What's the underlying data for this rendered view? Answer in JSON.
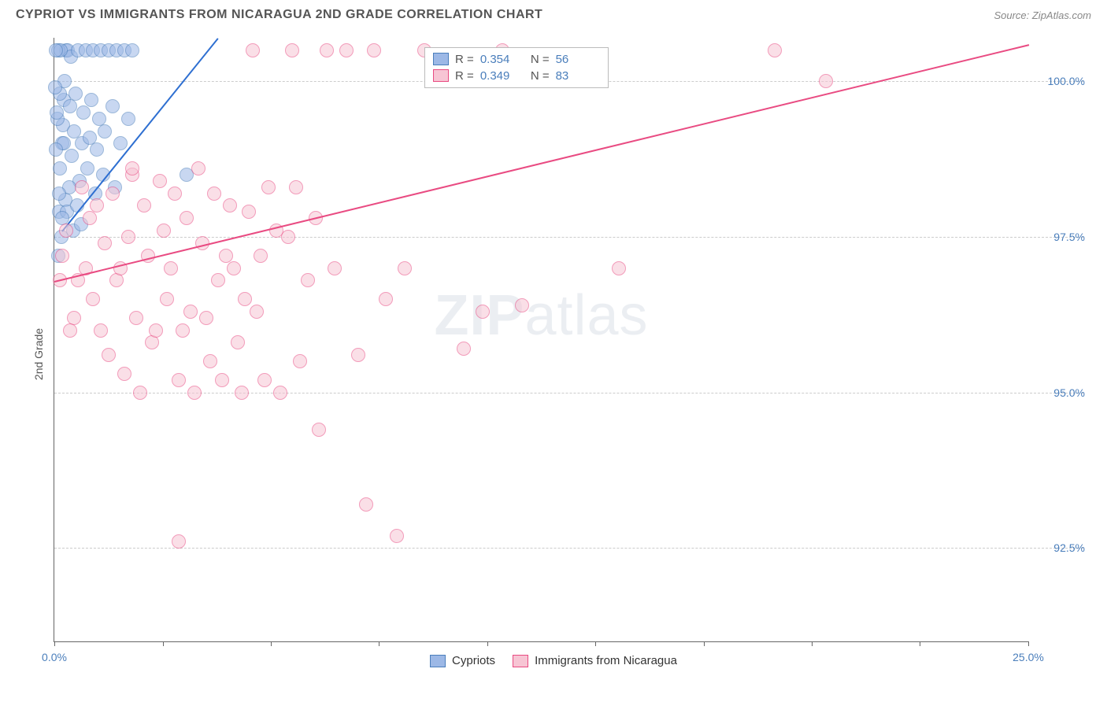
{
  "header": {
    "title": "CYPRIOT VS IMMIGRANTS FROM NICARAGUA 2ND GRADE CORRELATION CHART",
    "source": "Source: ZipAtlas.com"
  },
  "watermark": {
    "zip": "ZIP",
    "atlas": "atlas"
  },
  "chart": {
    "type": "scatter",
    "ylabel": "2nd Grade",
    "background_color": "#ffffff",
    "grid_color": "#cccccc",
    "axis_color": "#666666",
    "tick_label_color": "#4a7ebb",
    "xlim": [
      0,
      25
    ],
    "ylim": [
      91,
      100.7
    ],
    "xticks": [
      0,
      2.78,
      5.56,
      8.33,
      11.11,
      13.89,
      16.67,
      19.44,
      22.22,
      25
    ],
    "xtick_labels": {
      "0": "0.0%",
      "25": "25.0%"
    },
    "yticks": [
      92.5,
      95.0,
      97.5,
      100.0
    ],
    "ytick_labels": {
      "92.5": "92.5%",
      "95.0": "95.0%",
      "97.5": "97.5%",
      "100.0": "100.0%"
    },
    "marker_radius": 9,
    "marker_opacity": 0.55,
    "series": [
      {
        "key": "cypriots",
        "label": "Cypriots",
        "fill": "#9cb8e6",
        "stroke": "#4a7ebb",
        "line_color": "#2e6fd1",
        "R": "0.354",
        "N": "56",
        "trend": {
          "x1": 0.2,
          "y1": 97.6,
          "x2": 4.2,
          "y2": 100.7
        },
        "points": [
          [
            0.15,
            98.6
          ],
          [
            0.2,
            99.0
          ],
          [
            0.22,
            99.3
          ],
          [
            0.25,
            99.7
          ],
          [
            0.3,
            100.5
          ],
          [
            0.35,
            100.5
          ],
          [
            0.4,
            99.6
          ],
          [
            0.42,
            100.4
          ],
          [
            0.45,
            98.8
          ],
          [
            0.5,
            99.2
          ],
          [
            0.55,
            99.8
          ],
          [
            0.6,
            100.5
          ],
          [
            0.65,
            98.4
          ],
          [
            0.7,
            99.0
          ],
          [
            0.75,
            99.5
          ],
          [
            0.8,
            100.5
          ],
          [
            0.85,
            98.6
          ],
          [
            0.9,
            99.1
          ],
          [
            0.95,
            99.7
          ],
          [
            1.0,
            100.5
          ],
          [
            1.05,
            98.2
          ],
          [
            1.1,
            98.9
          ],
          [
            1.15,
            99.4
          ],
          [
            1.2,
            100.5
          ],
          [
            1.25,
            98.5
          ],
          [
            1.3,
            99.2
          ],
          [
            1.4,
            100.5
          ],
          [
            1.5,
            99.6
          ],
          [
            1.55,
            98.3
          ],
          [
            1.6,
            100.5
          ],
          [
            1.7,
            99.0
          ],
          [
            1.8,
            100.5
          ],
          [
            1.9,
            99.4
          ],
          [
            2.0,
            100.5
          ],
          [
            0.12,
            97.9
          ],
          [
            0.18,
            97.5
          ],
          [
            0.28,
            98.1
          ],
          [
            0.32,
            97.9
          ],
          [
            0.38,
            98.3
          ],
          [
            0.48,
            97.6
          ],
          [
            0.58,
            98.0
          ],
          [
            0.68,
            97.7
          ],
          [
            0.08,
            99.4
          ],
          [
            0.1,
            100.5
          ],
          [
            0.12,
            98.2
          ],
          [
            0.14,
            99.8
          ],
          [
            0.16,
            100.5
          ],
          [
            0.2,
            97.8
          ],
          [
            0.24,
            99.0
          ],
          [
            0.26,
            100.0
          ],
          [
            3.4,
            98.5
          ],
          [
            0.1,
            97.2
          ],
          [
            0.05,
            98.9
          ],
          [
            0.07,
            99.5
          ],
          [
            0.03,
            99.9
          ],
          [
            0.04,
            100.5
          ]
        ]
      },
      {
        "key": "nicaragua",
        "label": "Immigants from Nicaragua",
        "display_label": "Immigrants from Nicaragua",
        "fill": "#f7c5d4",
        "stroke": "#e94b82",
        "line_color": "#e94b82",
        "R": "0.349",
        "N": "83",
        "trend": {
          "x1": 0,
          "y1": 96.8,
          "x2": 25,
          "y2": 100.6
        },
        "points": [
          [
            0.2,
            97.2
          ],
          [
            0.3,
            97.6
          ],
          [
            0.5,
            96.2
          ],
          [
            0.7,
            98.3
          ],
          [
            0.8,
            97.0
          ],
          [
            0.9,
            97.8
          ],
          [
            1.0,
            96.5
          ],
          [
            1.1,
            98.0
          ],
          [
            1.2,
            96.0
          ],
          [
            1.3,
            97.4
          ],
          [
            1.5,
            98.2
          ],
          [
            1.6,
            96.8
          ],
          [
            1.8,
            95.3
          ],
          [
            1.9,
            97.5
          ],
          [
            2.0,
            98.5
          ],
          [
            2.1,
            96.2
          ],
          [
            2.3,
            98.0
          ],
          [
            2.4,
            97.2
          ],
          [
            2.5,
            95.8
          ],
          [
            2.7,
            98.4
          ],
          [
            2.8,
            97.6
          ],
          [
            2.9,
            96.5
          ],
          [
            3.0,
            97.0
          ],
          [
            3.2,
            95.2
          ],
          [
            3.4,
            97.8
          ],
          [
            3.5,
            96.3
          ],
          [
            3.7,
            98.6
          ],
          [
            3.8,
            97.4
          ],
          [
            4.0,
            95.5
          ],
          [
            4.2,
            96.8
          ],
          [
            4.4,
            97.2
          ],
          [
            4.5,
            98.0
          ],
          [
            4.7,
            95.8
          ],
          [
            4.9,
            96.5
          ],
          [
            5.0,
            97.9
          ],
          [
            5.1,
            100.5
          ],
          [
            5.3,
            97.2
          ],
          [
            5.5,
            98.3
          ],
          [
            5.8,
            95.0
          ],
          [
            6.0,
            97.5
          ],
          [
            6.1,
            100.5
          ],
          [
            6.2,
            98.3
          ],
          [
            6.5,
            96.8
          ],
          [
            6.8,
            94.4
          ],
          [
            7.0,
            100.5
          ],
          [
            7.2,
            97.0
          ],
          [
            7.5,
            100.5
          ],
          [
            7.8,
            95.6
          ],
          [
            8.0,
            93.2
          ],
          [
            8.2,
            100.5
          ],
          [
            8.5,
            96.5
          ],
          [
            8.8,
            92.7
          ],
          [
            9.0,
            97.0
          ],
          [
            9.5,
            100.5
          ],
          [
            10.5,
            95.7
          ],
          [
            11.0,
            96.3
          ],
          [
            11.5,
            100.5
          ],
          [
            12.0,
            96.4
          ],
          [
            14.5,
            97.0
          ],
          [
            18.5,
            100.5
          ],
          [
            19.8,
            100.0
          ],
          [
            0.15,
            96.8
          ],
          [
            0.4,
            96.0
          ],
          [
            0.6,
            96.8
          ],
          [
            1.4,
            95.6
          ],
          [
            1.7,
            97.0
          ],
          [
            2.2,
            95.0
          ],
          [
            2.6,
            96.0
          ],
          [
            3.1,
            98.2
          ],
          [
            3.3,
            96.0
          ],
          [
            3.6,
            95.0
          ],
          [
            3.9,
            96.2
          ],
          [
            4.1,
            98.2
          ],
          [
            4.3,
            95.2
          ],
          [
            4.6,
            97.0
          ],
          [
            4.8,
            95.0
          ],
          [
            5.2,
            96.3
          ],
          [
            5.4,
            95.2
          ],
          [
            5.7,
            97.6
          ],
          [
            6.3,
            95.5
          ],
          [
            6.7,
            97.8
          ],
          [
            2.0,
            98.6
          ],
          [
            3.2,
            92.6
          ]
        ]
      }
    ],
    "stats_box": {
      "left_pct": 38,
      "top_pct": 1.5
    },
    "R_label": "R =",
    "N_label": "N ="
  },
  "legend": {
    "items": [
      {
        "label": "Cypriots",
        "fill": "#9cb8e6",
        "stroke": "#4a7ebb"
      },
      {
        "label": "Immigrants from Nicaragua",
        "fill": "#f7c5d4",
        "stroke": "#e94b82"
      }
    ]
  }
}
